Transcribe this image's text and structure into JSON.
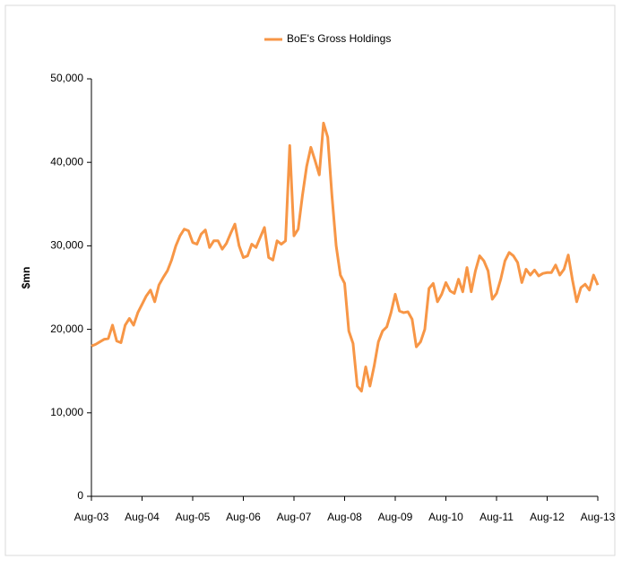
{
  "chart_data": {
    "type": "line",
    "ylabel": "$mn",
    "categories": [
      "Aug-03",
      null,
      null,
      null,
      null,
      null,
      null,
      null,
      null,
      null,
      null,
      null,
      "Aug-04",
      null,
      null,
      null,
      null,
      null,
      null,
      null,
      null,
      null,
      null,
      null,
      "Aug-05",
      null,
      null,
      null,
      null,
      null,
      null,
      null,
      null,
      null,
      null,
      null,
      "Aug-06",
      null,
      null,
      null,
      null,
      null,
      null,
      null,
      null,
      null,
      null,
      null,
      "Aug-07",
      null,
      null,
      null,
      null,
      null,
      null,
      null,
      null,
      null,
      null,
      null,
      "Aug-08",
      null,
      null,
      null,
      null,
      null,
      null,
      null,
      null,
      null,
      null,
      null,
      "Aug-09",
      null,
      null,
      null,
      null,
      null,
      null,
      null,
      null,
      null,
      null,
      null,
      "Aug-10",
      null,
      null,
      null,
      null,
      null,
      null,
      null,
      null,
      null,
      null,
      null,
      "Aug-11",
      null,
      null,
      null,
      null,
      null,
      null,
      null,
      null,
      null,
      null,
      null,
      "Aug-12",
      null,
      null,
      null,
      null,
      null,
      null,
      null,
      null,
      null,
      null,
      null,
      "Aug-13"
    ],
    "series": [
      {
        "name": "BoE's Gross Holdings",
        "color": "#f79646",
        "values": [
          18000,
          18200,
          18500,
          18800,
          18900,
          20500,
          18600,
          18400,
          20500,
          21300,
          20500,
          22000,
          23000,
          24000,
          24700,
          23300,
          25300,
          26200,
          27000,
          28300,
          30000,
          31200,
          32000,
          31800,
          30400,
          30200,
          31400,
          31900,
          29800,
          30600,
          30600,
          29600,
          30300,
          31500,
          32600,
          30000,
          28600,
          28800,
          30200,
          29800,
          31000,
          32200,
          28600,
          28300,
          30600,
          30200,
          30600,
          42000,
          31200,
          32000,
          36000,
          39500,
          41800,
          40200,
          38500,
          44700,
          43000,
          36000,
          30000,
          26500,
          25500,
          19800,
          18300,
          13200,
          12600,
          15500,
          13200,
          15600,
          18500,
          19800,
          20300,
          22000,
          24200,
          22200,
          22000,
          22100,
          21200,
          17900,
          18500,
          20000,
          24900,
          25500,
          23300,
          24200,
          25600,
          24600,
          24300,
          26000,
          24500,
          27400,
          24500,
          27000,
          28800,
          28200,
          27000,
          23600,
          24300,
          26000,
          28200,
          29200,
          28800,
          28000,
          25600,
          27200,
          26500,
          27100,
          26400,
          26700,
          26800,
          26800,
          27700,
          26500,
          27200,
          28900,
          25900,
          23300,
          25000,
          25400,
          24700,
          26500,
          25300
        ]
      }
    ],
    "ylim": [
      0,
      50000
    ],
    "yticks": [
      0,
      {
        "value": 10000,
        "label": "10,000"
      },
      {
        "value": 20000,
        "label": "20,000"
      },
      {
        "value": 30000,
        "label": "30,000"
      },
      {
        "value": 40000,
        "label": "40,000"
      },
      {
        "value": 50000,
        "label": "50,000"
      }
    ],
    "legend": "top"
  }
}
